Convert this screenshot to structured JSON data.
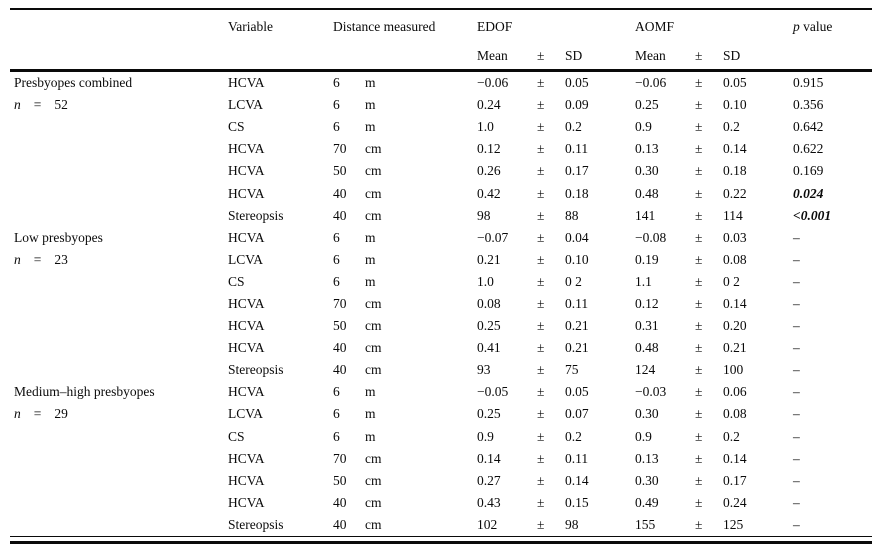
{
  "table": {
    "headers": {
      "variable": "Variable",
      "distance": "Distance measured",
      "edof": "EDOF",
      "aomf": "AOMF",
      "p_italic": "p",
      "p_rest": "value",
      "mean": "Mean",
      "pm": "±",
      "sd": "SD"
    },
    "groups": [
      {
        "label": "Presbyopes combined",
        "n_label": "n",
        "n_eq": "=",
        "n_value": "52",
        "rows": [
          {
            "variable": "HCVA",
            "dist": "6",
            "unit": "m",
            "edof_mean": "−0.06",
            "pm": "±",
            "edof_sd": "0.05",
            "aomf_mean": "−0.06",
            "aomf_sd": "0.05",
            "p": "0.915",
            "p_bold": false
          },
          {
            "variable": "LCVA",
            "dist": "6",
            "unit": "m",
            "edof_mean": "0.24",
            "pm": "±",
            "edof_sd": "0.09",
            "aomf_mean": "0.25",
            "aomf_sd": "0.10",
            "p": "0.356",
            "p_bold": false
          },
          {
            "variable": "CS",
            "dist": "6",
            "unit": "m",
            "edof_mean": "1.0",
            "pm": "±",
            "edof_sd": "0.2",
            "aomf_mean": "0.9",
            "aomf_sd": "0.2",
            "p": "0.642",
            "p_bold": false
          },
          {
            "variable": "HCVA",
            "dist": "70",
            "unit": "cm",
            "edof_mean": "0.12",
            "pm": "±",
            "edof_sd": "0.11",
            "aomf_mean": "0.13",
            "aomf_sd": "0.14",
            "p": "0.622",
            "p_bold": false
          },
          {
            "variable": "HCVA",
            "dist": "50",
            "unit": "cm",
            "edof_mean": "0.26",
            "pm": "±",
            "edof_sd": "0.17",
            "aomf_mean": "0.30",
            "aomf_sd": "0.18",
            "p": "0.169",
            "p_bold": false
          },
          {
            "variable": "HCVA",
            "dist": "40",
            "unit": "cm",
            "edof_mean": "0.42",
            "pm": "±",
            "edof_sd": "0.18",
            "aomf_mean": "0.48",
            "aomf_sd": "0.22",
            "p": "0.024",
            "p_bold": true
          },
          {
            "variable": "Stereopsis",
            "dist": "40",
            "unit": "cm",
            "edof_mean": "98",
            "pm": "±",
            "edof_sd": "88",
            "aomf_mean": "141",
            "aomf_sd": "114",
            "p": "<0.001",
            "p_bold": true
          }
        ]
      },
      {
        "label": "Low presbyopes",
        "n_label": "n",
        "n_eq": "=",
        "n_value": "23",
        "rows": [
          {
            "variable": "HCVA",
            "dist": "6",
            "unit": "m",
            "edof_mean": "−0.07",
            "pm": "±",
            "edof_sd": "0.04",
            "aomf_mean": "−0.08",
            "aomf_sd": "0.03",
            "p": "–",
            "p_bold": false
          },
          {
            "variable": "LCVA",
            "dist": "6",
            "unit": "m",
            "edof_mean": "0.21",
            "pm": "±",
            "edof_sd": "0.10",
            "aomf_mean": "0.19",
            "aomf_sd": "0.08",
            "p": "–",
            "p_bold": false
          },
          {
            "variable": "CS",
            "dist": "6",
            "unit": "m",
            "edof_mean": "1.0",
            "pm": "±",
            "edof_sd": "0 2",
            "aomf_mean": "1.1",
            "aomf_sd": "0 2",
            "p": "–",
            "p_bold": false
          },
          {
            "variable": "HCVA",
            "dist": "70",
            "unit": "cm",
            "edof_mean": "0.08",
            "pm": "±",
            "edof_sd": "0.11",
            "aomf_mean": "0.12",
            "aomf_sd": "0.14",
            "p": "–",
            "p_bold": false
          },
          {
            "variable": "HCVA",
            "dist": "50",
            "unit": "cm",
            "edof_mean": "0.25",
            "pm": "±",
            "edof_sd": "0.21",
            "aomf_mean": "0.31",
            "aomf_sd": "0.20",
            "p": "–",
            "p_bold": false
          },
          {
            "variable": "HCVA",
            "dist": "40",
            "unit": "cm",
            "edof_mean": "0.41",
            "pm": "±",
            "edof_sd": "0.21",
            "aomf_mean": "0.48",
            "aomf_sd": "0.21",
            "p": "–",
            "p_bold": false
          },
          {
            "variable": "Stereopsis",
            "dist": "40",
            "unit": "cm",
            "edof_mean": "93",
            "pm": "±",
            "edof_sd": "75",
            "aomf_mean": "124",
            "aomf_sd": "100",
            "p": "–",
            "p_bold": false
          }
        ]
      },
      {
        "label": "Medium–high presbyopes",
        "n_label": "n",
        "n_eq": "=",
        "n_value": "29",
        "rows": [
          {
            "variable": "HCVA",
            "dist": "6",
            "unit": "m",
            "edof_mean": "−0.05",
            "pm": "±",
            "edof_sd": "0.05",
            "aomf_mean": "−0.03",
            "aomf_sd": "0.06",
            "p": "–",
            "p_bold": false
          },
          {
            "variable": "LCVA",
            "dist": "6",
            "unit": "m",
            "edof_mean": "0.25",
            "pm": "±",
            "edof_sd": "0.07",
            "aomf_mean": "0.30",
            "aomf_sd": "0.08",
            "p": "–",
            "p_bold": false
          },
          {
            "variable": "CS",
            "dist": "6",
            "unit": "m",
            "edof_mean": "0.9",
            "pm": "±",
            "edof_sd": "0.2",
            "aomf_mean": "0.9",
            "aomf_sd": "0.2",
            "p": "–",
            "p_bold": false
          },
          {
            "variable": "HCVA",
            "dist": "70",
            "unit": "cm",
            "edof_mean": "0.14",
            "pm": "±",
            "edof_sd": "0.11",
            "aomf_mean": "0.13",
            "aomf_sd": "0.14",
            "p": "–",
            "p_bold": false
          },
          {
            "variable": "HCVA",
            "dist": "50",
            "unit": "cm",
            "edof_mean": "0.27",
            "pm": "±",
            "edof_sd": "0.14",
            "aomf_mean": "0.30",
            "aomf_sd": "0.17",
            "p": "–",
            "p_bold": false
          },
          {
            "variable": "HCVA",
            "dist": "40",
            "unit": "cm",
            "edof_mean": "0.43",
            "pm": "±",
            "edof_sd": "0.15",
            "aomf_mean": "0.49",
            "aomf_sd": "0.24",
            "p": "–",
            "p_bold": false
          },
          {
            "variable": "Stereopsis",
            "dist": "40",
            "unit": "cm",
            "edof_mean": "102",
            "pm": "±",
            "edof_sd": "98",
            "aomf_mean": "155",
            "aomf_sd": "125",
            "p": "–",
            "p_bold": false
          }
        ]
      }
    ]
  }
}
